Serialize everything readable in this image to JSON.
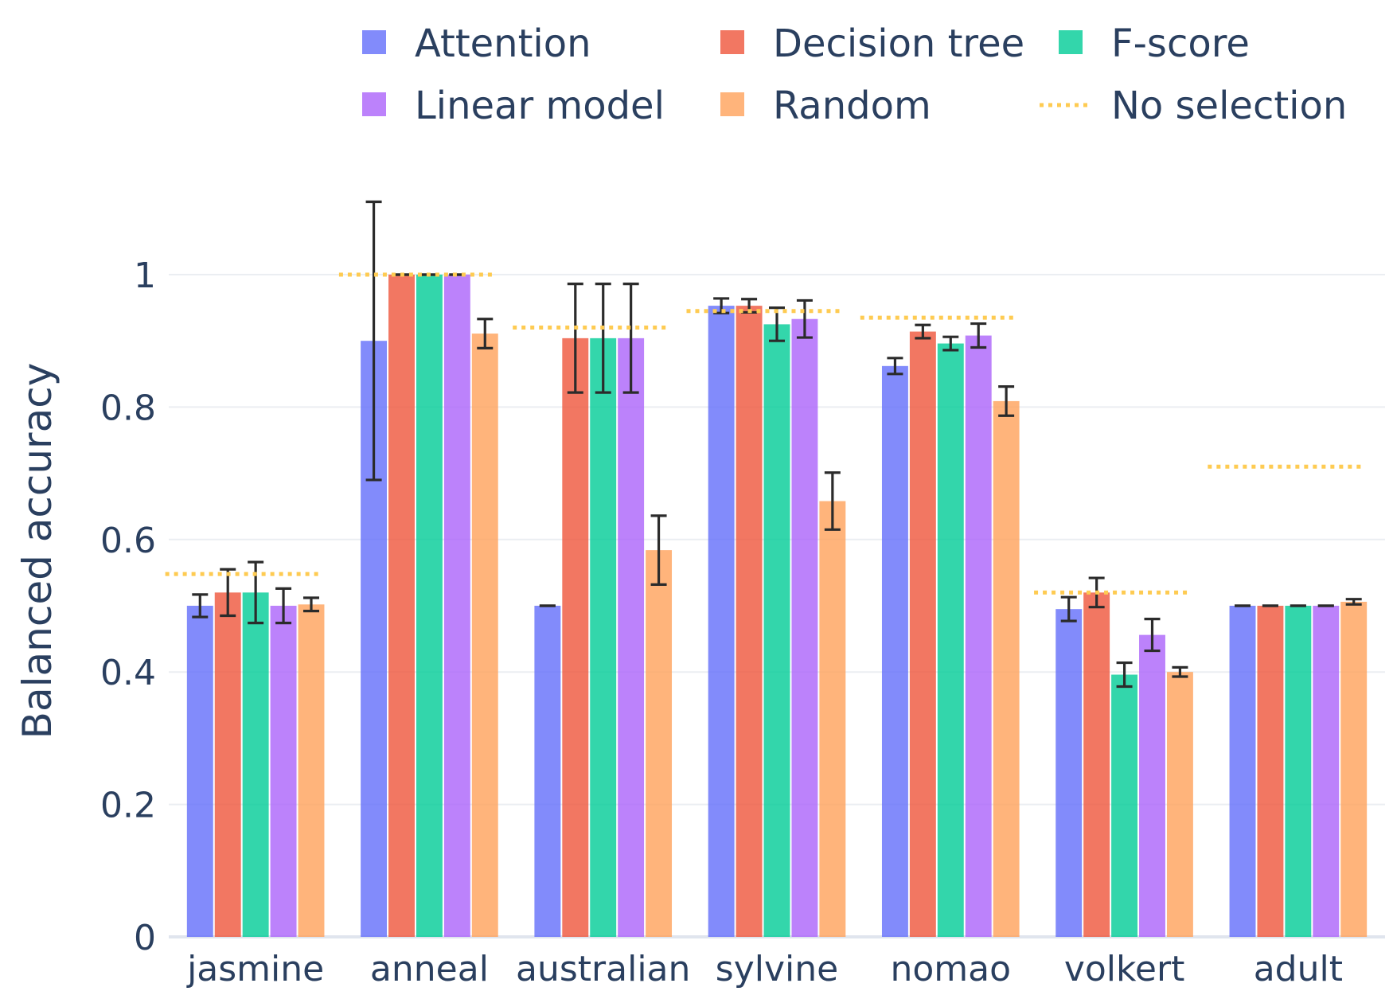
{
  "chart_data": {
    "type": "bar",
    "ylabel": "Balanced accuracy",
    "xlabel": "",
    "ylim": [
      0,
      1.12
    ],
    "yticks": [
      0,
      0.2,
      0.4,
      0.6,
      0.8,
      1
    ],
    "ytick_labels": [
      "0",
      "0.2",
      "0.4",
      "0.6",
      "0.8",
      "1"
    ],
    "grid": true,
    "legend_position": "top",
    "categories": [
      "jasmine",
      "anneal",
      "australian",
      "sylvine",
      "nomao",
      "volkert",
      "adult"
    ],
    "series": [
      {
        "name": "Attention",
        "color": "#636efa",
        "values": [
          0.5,
          0.9,
          0.5,
          0.953,
          0.862,
          0.495,
          0.5
        ],
        "errors": [
          0.017,
          0.21,
          0.0,
          0.011,
          0.012,
          0.018,
          0.0
        ]
      },
      {
        "name": "Decision tree",
        "color": "#ef553b",
        "values": [
          0.52,
          1.0,
          0.904,
          0.953,
          0.914,
          0.52,
          0.5
        ],
        "errors": [
          0.035,
          0.0,
          0.082,
          0.01,
          0.01,
          0.022,
          0.0
        ]
      },
      {
        "name": "F-score",
        "color": "#00cc96",
        "values": [
          0.52,
          1.0,
          0.904,
          0.925,
          0.896,
          0.396,
          0.5
        ],
        "errors": [
          0.046,
          0.0,
          0.082,
          0.025,
          0.01,
          0.018,
          0.0
        ]
      },
      {
        "name": "Linear model",
        "color": "#ab63fa",
        "values": [
          0.5,
          1.0,
          0.904,
          0.933,
          0.908,
          0.456,
          0.5
        ],
        "errors": [
          0.026,
          0.0,
          0.082,
          0.028,
          0.018,
          0.024,
          0.0
        ]
      },
      {
        "name": "Random",
        "color": "#ffa15a",
        "values": [
          0.502,
          0.911,
          0.584,
          0.658,
          0.809,
          0.4,
          0.506
        ],
        "errors": [
          0.01,
          0.022,
          0.052,
          0.043,
          0.022,
          0.007,
          0.004
        ]
      }
    ],
    "baseline": {
      "name": "No selection",
      "color": "#fecb52",
      "values": [
        0.548,
        1.0,
        0.92,
        0.945,
        0.935,
        0.52,
        0.71
      ]
    }
  }
}
